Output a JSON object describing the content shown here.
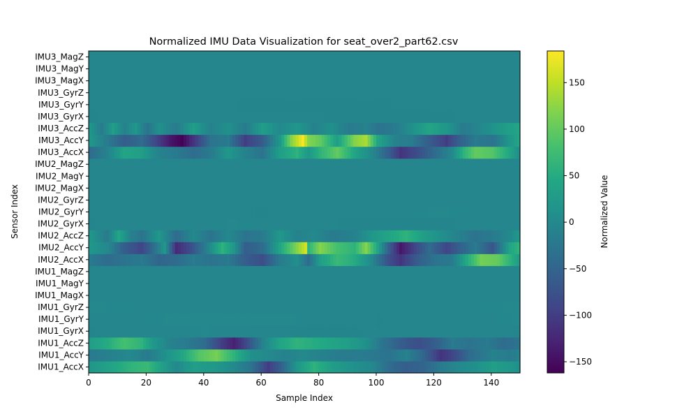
{
  "chart_data": {
    "type": "heatmap",
    "title": "Normalized IMU Data Visualization for seat_over2_part62.csv",
    "xlabel": "Sample Index",
    "ylabel": "Sensor Index",
    "colorbar_label": "Normalized Value",
    "colormap": "viridis",
    "xlim": [
      0,
      150
    ],
    "clim": [
      -162,
      184
    ],
    "x_ticks": [
      0,
      20,
      40,
      60,
      80,
      100,
      120,
      140
    ],
    "colorbar_ticks": [
      -150,
      -100,
      -50,
      0,
      50,
      100,
      150
    ],
    "colorbar_tick_labels": [
      "−150",
      "−100",
      "−50",
      "0",
      "50",
      "100",
      "150"
    ],
    "rows": [
      "IMU1_AccX",
      "IMU1_AccY",
      "IMU1_AccZ",
      "IMU1_GyrX",
      "IMU1_GyrY",
      "IMU1_GyrZ",
      "IMU1_MagX",
      "IMU1_MagY",
      "IMU1_MagZ",
      "IMU2_AccX",
      "IMU2_AccY",
      "IMU2_AccZ",
      "IMU2_GyrX",
      "IMU2_GyrY",
      "IMU2_GyrZ",
      "IMU2_MagX",
      "IMU2_MagY",
      "IMU2_MagZ",
      "IMU3_AccX",
      "IMU3_AccY",
      "IMU3_AccZ",
      "IMU3_GyrX",
      "IMU3_GyrY",
      "IMU3_GyrZ",
      "IMU3_MagX",
      "IMU3_MagY",
      "IMU3_MagZ"
    ],
    "n_samples": 150,
    "keyframes": {
      "IMU1_AccX": [
        [
          0,
          20
        ],
        [
          8,
          40
        ],
        [
          14,
          60
        ],
        [
          20,
          70
        ],
        [
          24,
          40
        ],
        [
          30,
          0
        ],
        [
          36,
          30
        ],
        [
          44,
          20
        ],
        [
          50,
          0
        ],
        [
          56,
          -30
        ],
        [
          62,
          -100
        ],
        [
          66,
          -60
        ],
        [
          72,
          20
        ],
        [
          78,
          60
        ],
        [
          84,
          30
        ],
        [
          92,
          10
        ],
        [
          98,
          0
        ],
        [
          104,
          -40
        ],
        [
          110,
          -60
        ],
        [
          116,
          -50
        ],
        [
          122,
          -20
        ],
        [
          128,
          0
        ],
        [
          134,
          10
        ],
        [
          140,
          30
        ],
        [
          146,
          20
        ],
        [
          149,
          10
        ]
      ],
      "IMU1_AccY": [
        [
          0,
          -20
        ],
        [
          8,
          -10
        ],
        [
          14,
          0
        ],
        [
          20,
          -20
        ],
        [
          26,
          10
        ],
        [
          32,
          40
        ],
        [
          38,
          90
        ],
        [
          44,
          110
        ],
        [
          50,
          60
        ],
        [
          56,
          10
        ],
        [
          62,
          0
        ],
        [
          68,
          -10
        ],
        [
          74,
          0
        ],
        [
          80,
          -10
        ],
        [
          88,
          -20
        ],
        [
          96,
          -20
        ],
        [
          104,
          -30
        ],
        [
          110,
          -10
        ],
        [
          116,
          -50
        ],
        [
          122,
          -110
        ],
        [
          126,
          -90
        ],
        [
          132,
          -40
        ],
        [
          140,
          -10
        ],
        [
          146,
          -20
        ],
        [
          149,
          -10
        ]
      ],
      "IMU1_AccZ": [
        [
          0,
          30
        ],
        [
          6,
          50
        ],
        [
          12,
          80
        ],
        [
          18,
          60
        ],
        [
          22,
          20
        ],
        [
          28,
          -10
        ],
        [
          34,
          -20
        ],
        [
          40,
          -40
        ],
        [
          46,
          -100
        ],
        [
          50,
          -130
        ],
        [
          54,
          -90
        ],
        [
          60,
          -10
        ],
        [
          66,
          40
        ],
        [
          72,
          60
        ],
        [
          78,
          50
        ],
        [
          84,
          40
        ],
        [
          90,
          30
        ],
        [
          96,
          10
        ],
        [
          102,
          -30
        ],
        [
          108,
          -60
        ],
        [
          114,
          -80
        ],
        [
          120,
          -60
        ],
        [
          126,
          -20
        ],
        [
          132,
          -30
        ],
        [
          138,
          -20
        ],
        [
          144,
          -40
        ],
        [
          149,
          -30
        ]
      ],
      "IMU1_GyrX": [
        [
          0,
          -5
        ],
        [
          40,
          -2
        ],
        [
          80,
          -6
        ],
        [
          120,
          -3
        ],
        [
          149,
          -5
        ]
      ],
      "IMU1_GyrY": [
        [
          0,
          -3
        ],
        [
          60,
          -1
        ],
        [
          100,
          -5
        ],
        [
          149,
          -2
        ]
      ],
      "IMU1_GyrZ": [
        [
          0,
          -2
        ],
        [
          75,
          -4
        ],
        [
          149,
          -2
        ]
      ],
      "IMU1_MagX": [
        [
          0,
          -4
        ],
        [
          149,
          -4
        ]
      ],
      "IMU1_MagY": [
        [
          0,
          -4
        ],
        [
          149,
          -4
        ]
      ],
      "IMU1_MagZ": [
        [
          0,
          -4
        ],
        [
          149,
          -4
        ]
      ],
      "IMU2_AccX": [
        [
          0,
          -20
        ],
        [
          6,
          -40
        ],
        [
          12,
          -30
        ],
        [
          18,
          -20
        ],
        [
          24,
          -50
        ],
        [
          30,
          -40
        ],
        [
          36,
          -20
        ],
        [
          42,
          -30
        ],
        [
          48,
          -20
        ],
        [
          54,
          -60
        ],
        [
          60,
          -80
        ],
        [
          66,
          -20
        ],
        [
          72,
          10
        ],
        [
          76,
          -40
        ],
        [
          80,
          30
        ],
        [
          86,
          70
        ],
        [
          92,
          50
        ],
        [
          98,
          0
        ],
        [
          104,
          -80
        ],
        [
          108,
          -110
        ],
        [
          114,
          -60
        ],
        [
          120,
          -30
        ],
        [
          126,
          -20
        ],
        [
          132,
          60
        ],
        [
          136,
          110
        ],
        [
          142,
          100
        ],
        [
          146,
          60
        ],
        [
          149,
          30
        ]
      ],
      "IMU2_AccY": [
        [
          0,
          20
        ],
        [
          6,
          0
        ],
        [
          12,
          -60
        ],
        [
          18,
          -90
        ],
        [
          22,
          -40
        ],
        [
          26,
          20
        ],
        [
          30,
          -120
        ],
        [
          34,
          -90
        ],
        [
          40,
          -20
        ],
        [
          46,
          60
        ],
        [
          50,
          20
        ],
        [
          54,
          -60
        ],
        [
          60,
          -40
        ],
        [
          66,
          40
        ],
        [
          72,
          120
        ],
        [
          75,
          160
        ],
        [
          76,
          60
        ],
        [
          80,
          120
        ],
        [
          86,
          80
        ],
        [
          92,
          60
        ],
        [
          96,
          120
        ],
        [
          100,
          40
        ],
        [
          104,
          -60
        ],
        [
          108,
          -140
        ],
        [
          112,
          -100
        ],
        [
          118,
          -40
        ],
        [
          124,
          -90
        ],
        [
          128,
          -60
        ],
        [
          134,
          -20
        ],
        [
          140,
          -70
        ],
        [
          146,
          40
        ],
        [
          149,
          60
        ]
      ],
      "IMU2_AccZ": [
        [
          0,
          20
        ],
        [
          6,
          -20
        ],
        [
          10,
          40
        ],
        [
          14,
          -10
        ],
        [
          18,
          -30
        ],
        [
          24,
          20
        ],
        [
          30,
          -40
        ],
        [
          36,
          0
        ],
        [
          42,
          -30
        ],
        [
          48,
          0
        ],
        [
          54,
          -30
        ],
        [
          60,
          -20
        ],
        [
          66,
          20
        ],
        [
          72,
          -10
        ],
        [
          78,
          0
        ],
        [
          84,
          -20
        ],
        [
          92,
          -10
        ],
        [
          98,
          20
        ],
        [
          104,
          40
        ],
        [
          110,
          60
        ],
        [
          116,
          30
        ],
        [
          122,
          10
        ],
        [
          128,
          -10
        ],
        [
          134,
          -30
        ],
        [
          140,
          -20
        ],
        [
          146,
          0
        ],
        [
          149,
          20
        ]
      ],
      "IMU2_GyrX": [
        [
          0,
          -5
        ],
        [
          50,
          -2
        ],
        [
          100,
          -6
        ],
        [
          149,
          -4
        ]
      ],
      "IMU2_GyrY": [
        [
          0,
          -3
        ],
        [
          60,
          -5
        ],
        [
          120,
          -2
        ],
        [
          149,
          -3
        ]
      ],
      "IMU2_GyrZ": [
        [
          0,
          -3
        ],
        [
          149,
          -3
        ]
      ],
      "IMU2_MagX": [
        [
          0,
          -4
        ],
        [
          149,
          -4
        ]
      ],
      "IMU2_MagY": [
        [
          0,
          -4
        ],
        [
          149,
          -4
        ]
      ],
      "IMU2_MagZ": [
        [
          0,
          -4
        ],
        [
          149,
          -4
        ]
      ],
      "IMU3_AccX": [
        [
          0,
          -40
        ],
        [
          6,
          -10
        ],
        [
          12,
          40
        ],
        [
          18,
          30
        ],
        [
          24,
          -10
        ],
        [
          30,
          -20
        ],
        [
          36,
          -40
        ],
        [
          42,
          -20
        ],
        [
          48,
          20
        ],
        [
          54,
          -10
        ],
        [
          60,
          -30
        ],
        [
          66,
          30
        ],
        [
          72,
          60
        ],
        [
          76,
          20
        ],
        [
          80,
          60
        ],
        [
          86,
          100
        ],
        [
          92,
          40
        ],
        [
          98,
          0
        ],
        [
          104,
          -60
        ],
        [
          108,
          -110
        ],
        [
          114,
          -80
        ],
        [
          120,
          -40
        ],
        [
          126,
          0
        ],
        [
          130,
          60
        ],
        [
          134,
          100
        ],
        [
          140,
          90
        ],
        [
          146,
          40
        ],
        [
          149,
          10
        ]
      ],
      "IMU3_AccY": [
        [
          0,
          20
        ],
        [
          6,
          -20
        ],
        [
          12,
          -60
        ],
        [
          18,
          -40
        ],
        [
          24,
          -100
        ],
        [
          28,
          -140
        ],
        [
          32,
          -160
        ],
        [
          36,
          -110
        ],
        [
          42,
          -30
        ],
        [
          48,
          -20
        ],
        [
          54,
          -100
        ],
        [
          60,
          -60
        ],
        [
          66,
          20
        ],
        [
          70,
          120
        ],
        [
          74,
          180
        ],
        [
          76,
          120
        ],
        [
          80,
          100
        ],
        [
          86,
          30
        ],
        [
          92,
          120
        ],
        [
          96,
          140
        ],
        [
          100,
          40
        ],
        [
          106,
          -10
        ],
        [
          112,
          -20
        ],
        [
          118,
          -60
        ],
        [
          124,
          -100
        ],
        [
          128,
          -60
        ],
        [
          134,
          -20
        ],
        [
          140,
          -30
        ],
        [
          146,
          20
        ],
        [
          149,
          40
        ]
      ],
      "IMU3_AccZ": [
        [
          0,
          20
        ],
        [
          4,
          -20
        ],
        [
          8,
          30
        ],
        [
          12,
          -10
        ],
        [
          16,
          20
        ],
        [
          20,
          -30
        ],
        [
          24,
          10
        ],
        [
          30,
          -20
        ],
        [
          36,
          30
        ],
        [
          42,
          -10
        ],
        [
          48,
          10
        ],
        [
          54,
          -20
        ],
        [
          60,
          30
        ],
        [
          66,
          0
        ],
        [
          72,
          20
        ],
        [
          78,
          -10
        ],
        [
          84,
          10
        ],
        [
          90,
          -20
        ],
        [
          96,
          -10
        ],
        [
          100,
          -30
        ],
        [
          106,
          -20
        ],
        [
          112,
          10
        ],
        [
          118,
          40
        ],
        [
          124,
          20
        ],
        [
          130,
          -20
        ],
        [
          136,
          0
        ],
        [
          142,
          20
        ],
        [
          149,
          40
        ]
      ],
      "IMU3_GyrX": [
        [
          0,
          -5
        ],
        [
          50,
          -3
        ],
        [
          100,
          -6
        ],
        [
          149,
          -4
        ]
      ],
      "IMU3_GyrY": [
        [
          0,
          -3
        ],
        [
          80,
          -6
        ],
        [
          149,
          -3
        ]
      ],
      "IMU3_GyrZ": [
        [
          0,
          -4
        ],
        [
          149,
          -4
        ]
      ],
      "IMU3_MagX": [
        [
          0,
          -4
        ],
        [
          149,
          -4
        ]
      ],
      "IMU3_MagY": [
        [
          0,
          -4
        ],
        [
          149,
          -4
        ]
      ],
      "IMU3_MagZ": [
        [
          0,
          -4
        ],
        [
          149,
          -4
        ]
      ]
    }
  }
}
